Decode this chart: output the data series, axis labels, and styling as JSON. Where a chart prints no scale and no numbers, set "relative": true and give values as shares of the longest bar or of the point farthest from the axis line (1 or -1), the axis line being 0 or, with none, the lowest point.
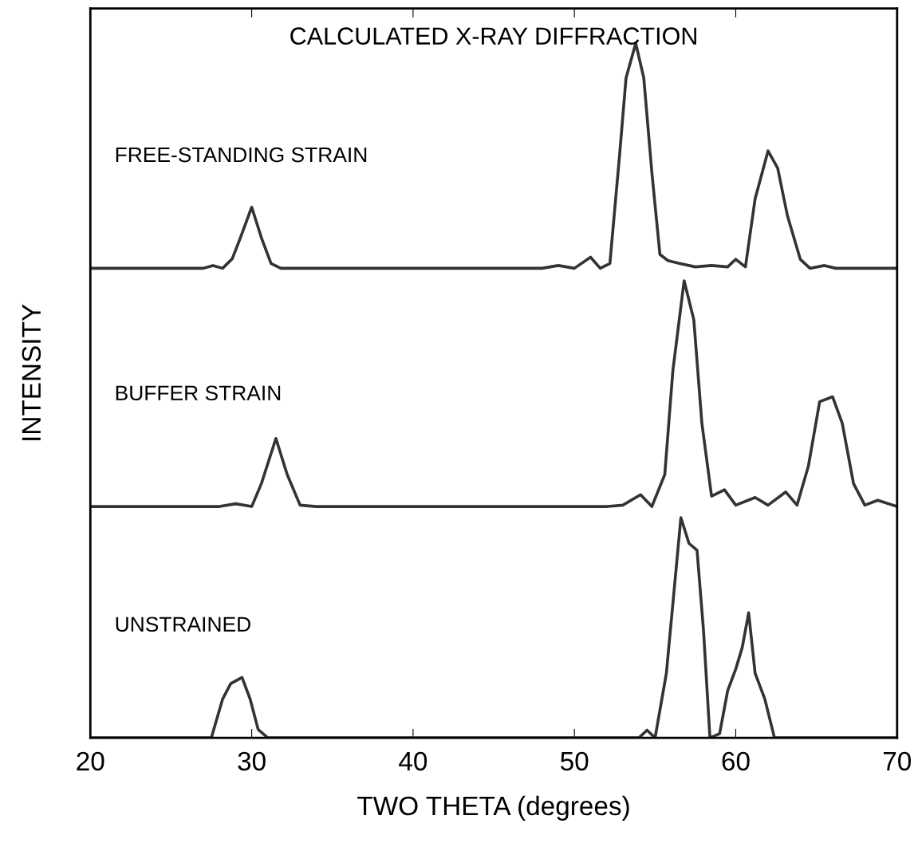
{
  "chart_data": {
    "type": "line",
    "title": "CALCULATED X-RAY DIFFRACTION",
    "xlabel": "TWO THETA (degrees)",
    "ylabel": "INTENSITY",
    "relative": true,
    "xlim": [
      20,
      70
    ],
    "xticks": [
      20,
      30,
      40,
      50,
      60,
      70
    ],
    "grid": false,
    "legend": false,
    "marker": "none",
    "line_style": "solid",
    "series": [
      {
        "name": "FREE-STANDING STRAIN",
        "color": "#333333",
        "x": [
          20,
          27,
          27.6,
          28.2,
          28.8,
          29.3,
          30,
          30.6,
          31.2,
          31.8,
          48,
          49,
          50,
          51,
          51.6,
          52.2,
          52.8,
          53.2,
          53.8,
          54.3,
          54.8,
          55.3,
          55.8,
          56.5,
          57.5,
          58.5,
          59.5,
          60,
          60.6,
          61.2,
          62,
          62.6,
          63.2,
          64,
          64.6,
          65.5,
          66.2,
          70
        ],
        "values": [
          0.676,
          0.676,
          0.68,
          0.676,
          0.69,
          0.72,
          0.764,
          0.72,
          0.683,
          0.676,
          0.676,
          0.68,
          0.676,
          0.692,
          0.676,
          0.683,
          0.839,
          0.95,
          1.0,
          0.95,
          0.814,
          0.696,
          0.687,
          0.683,
          0.678,
          0.68,
          0.678,
          0.689,
          0.678,
          0.776,
          0.845,
          0.82,
          0.752,
          0.689,
          0.676,
          0.68,
          0.676,
          0.676
        ]
      },
      {
        "name": "BUFFER STRAIN",
        "color": "#333333",
        "x": [
          20,
          28,
          29,
          30,
          30.6,
          31.5,
          32.2,
          33,
          34,
          52,
          53,
          54.1,
          54.8,
          55.6,
          56.1,
          56.8,
          57.4,
          57.9,
          58.5,
          59.3,
          60,
          61.2,
          62,
          63.1,
          63.8,
          64.5,
          65.2,
          66,
          66.6,
          67.3,
          68,
          68.8,
          70
        ],
        "values": [
          0.333,
          0.333,
          0.337,
          0.333,
          0.366,
          0.431,
          0.379,
          0.335,
          0.333,
          0.333,
          0.335,
          0.35,
          0.333,
          0.379,
          0.528,
          0.658,
          0.602,
          0.453,
          0.348,
          0.357,
          0.335,
          0.346,
          0.335,
          0.354,
          0.335,
          0.391,
          0.484,
          0.491,
          0.453,
          0.366,
          0.335,
          0.342,
          0.333
        ]
      },
      {
        "name": "UNSTRAINED",
        "color": "#333333",
        "x": [
          20,
          27.5,
          28.2,
          28.7,
          29.4,
          29.9,
          30.4,
          31,
          54,
          54.5,
          55,
          55.7,
          56.6,
          57.1,
          57.6,
          58,
          58.4,
          59,
          59.5,
          60,
          60.4,
          60.8,
          61.2,
          61.8,
          62.4,
          70
        ],
        "values": [
          0,
          0,
          0.056,
          0.078,
          0.087,
          0.056,
          0.012,
          0,
          0,
          0.011,
          0,
          0.093,
          0.317,
          0.28,
          0.27,
          0.155,
          0,
          0.006,
          0.068,
          0.099,
          0.13,
          0.18,
          0.093,
          0.056,
          0,
          0
        ]
      }
    ]
  }
}
